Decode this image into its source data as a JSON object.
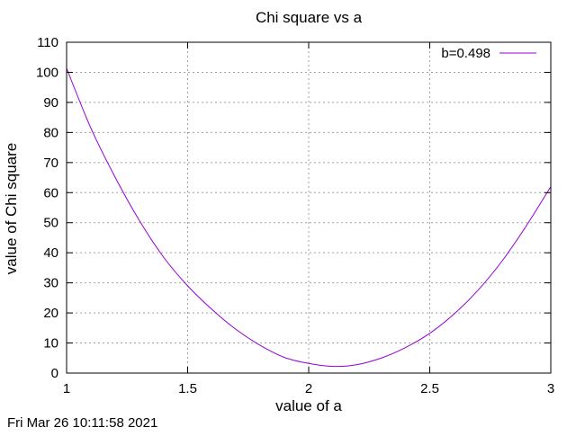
{
  "chart_data": {
    "type": "line",
    "title": "Chi square vs a",
    "xlabel": "value of a",
    "ylabel": "value of Chi square",
    "xlim": [
      1,
      3
    ],
    "ylim": [
      0,
      110
    ],
    "x_ticks": [
      "1",
      "1.5",
      "2",
      "2.5",
      "3"
    ],
    "y_ticks": [
      "0",
      "10",
      "20",
      "30",
      "40",
      "50",
      "60",
      "70",
      "80",
      "90",
      "100",
      "110"
    ],
    "grid": true,
    "legend_position": "top-right",
    "series": [
      {
        "name": "b=0.498",
        "color": "#9400d3",
        "x": [
          1.0,
          1.1,
          1.2,
          1.3,
          1.4,
          1.5,
          1.6,
          1.7,
          1.8,
          1.9,
          2.0,
          2.1,
          2.2,
          2.3,
          2.4,
          2.5,
          2.6,
          2.7,
          2.8,
          2.9,
          3.0
        ],
        "y": [
          101.3,
          81.5,
          65.2,
          50.8,
          38.6,
          29.0,
          21.2,
          14.5,
          9.2,
          5.2,
          3.2,
          2.2,
          2.8,
          5.0,
          8.5,
          13.2,
          19.6,
          27.6,
          37.4,
          49.1,
          62.0
        ]
      }
    ]
  },
  "timestamp": "Fri Mar 26 10:11:58 2021"
}
